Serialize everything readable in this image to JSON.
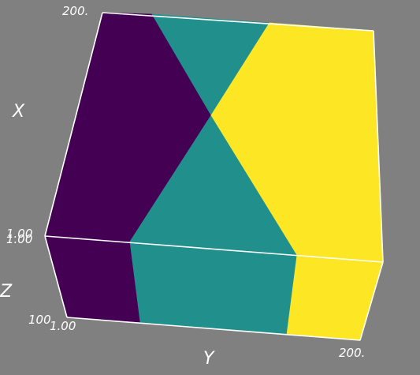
{
  "axes": {
    "x_label": "X",
    "y_label": "Y",
    "z_label": "Z",
    "x_tick_max": "200.",
    "x_tick_min": "1.00",
    "x_tick_min_2": "1.00",
    "z_tick_max": "100",
    "y_tick_min": "1.00",
    "y_tick_max": "200."
  },
  "colors": {
    "background": "#808080",
    "region_dark": "#440154",
    "region_teal": "#21908d",
    "region_yellow": "#fde725",
    "edge": "#ffffff"
  }
}
